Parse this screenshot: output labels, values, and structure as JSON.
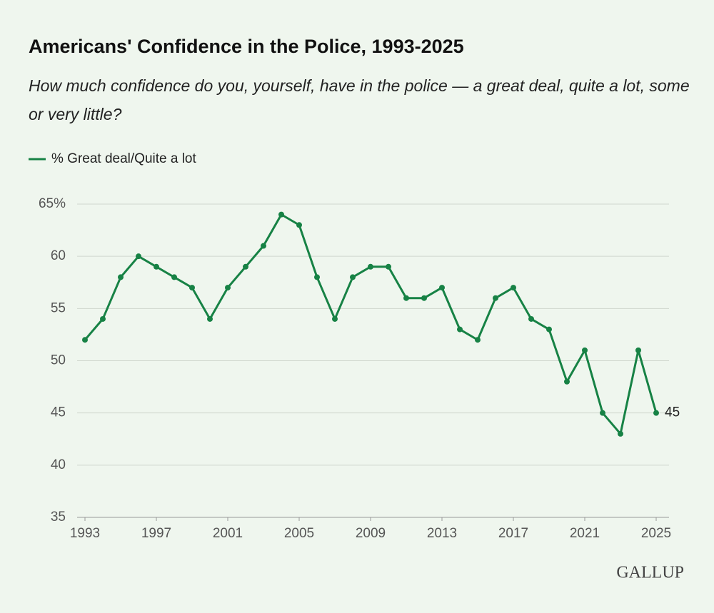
{
  "chart_data": {
    "type": "line",
    "title": "Americans' Confidence in the Police, 1993-2025",
    "subtitle": "How much confidence do you, yourself, have in the police — a great deal, quite a lot, some or very little?",
    "x": [
      1993,
      1994,
      1995,
      1996,
      1997,
      1998,
      1999,
      2000,
      2001,
      2002,
      2003,
      2004,
      2005,
      2006,
      2007,
      2008,
      2009,
      2010,
      2011,
      2012,
      2013,
      2014,
      2015,
      2016,
      2017,
      2018,
      2019,
      2020,
      2021,
      2022,
      2023,
      2024,
      2025
    ],
    "series": [
      {
        "name": "% Great deal/Quite a lot",
        "color": "#178245",
        "values": [
          52,
          54,
          58,
          60,
          59,
          58,
          57,
          54,
          57,
          59,
          61,
          64,
          63,
          58,
          54,
          58,
          59,
          59,
          56,
          56,
          57,
          53,
          52,
          56,
          57,
          54,
          53,
          48,
          51,
          45,
          43,
          51,
          45
        ]
      }
    ],
    "xlim": [
      1993,
      2025
    ],
    "xticks": [
      1993,
      1997,
      2001,
      2005,
      2009,
      2013,
      2017,
      2021,
      2025
    ],
    "ylim": [
      35,
      65
    ],
    "yticks": [
      35,
      40,
      45,
      50,
      55,
      60,
      {
        "value": 65,
        "label": "65%"
      }
    ],
    "grid": true,
    "legend": "top-left",
    "logo": "GALLUP"
  }
}
